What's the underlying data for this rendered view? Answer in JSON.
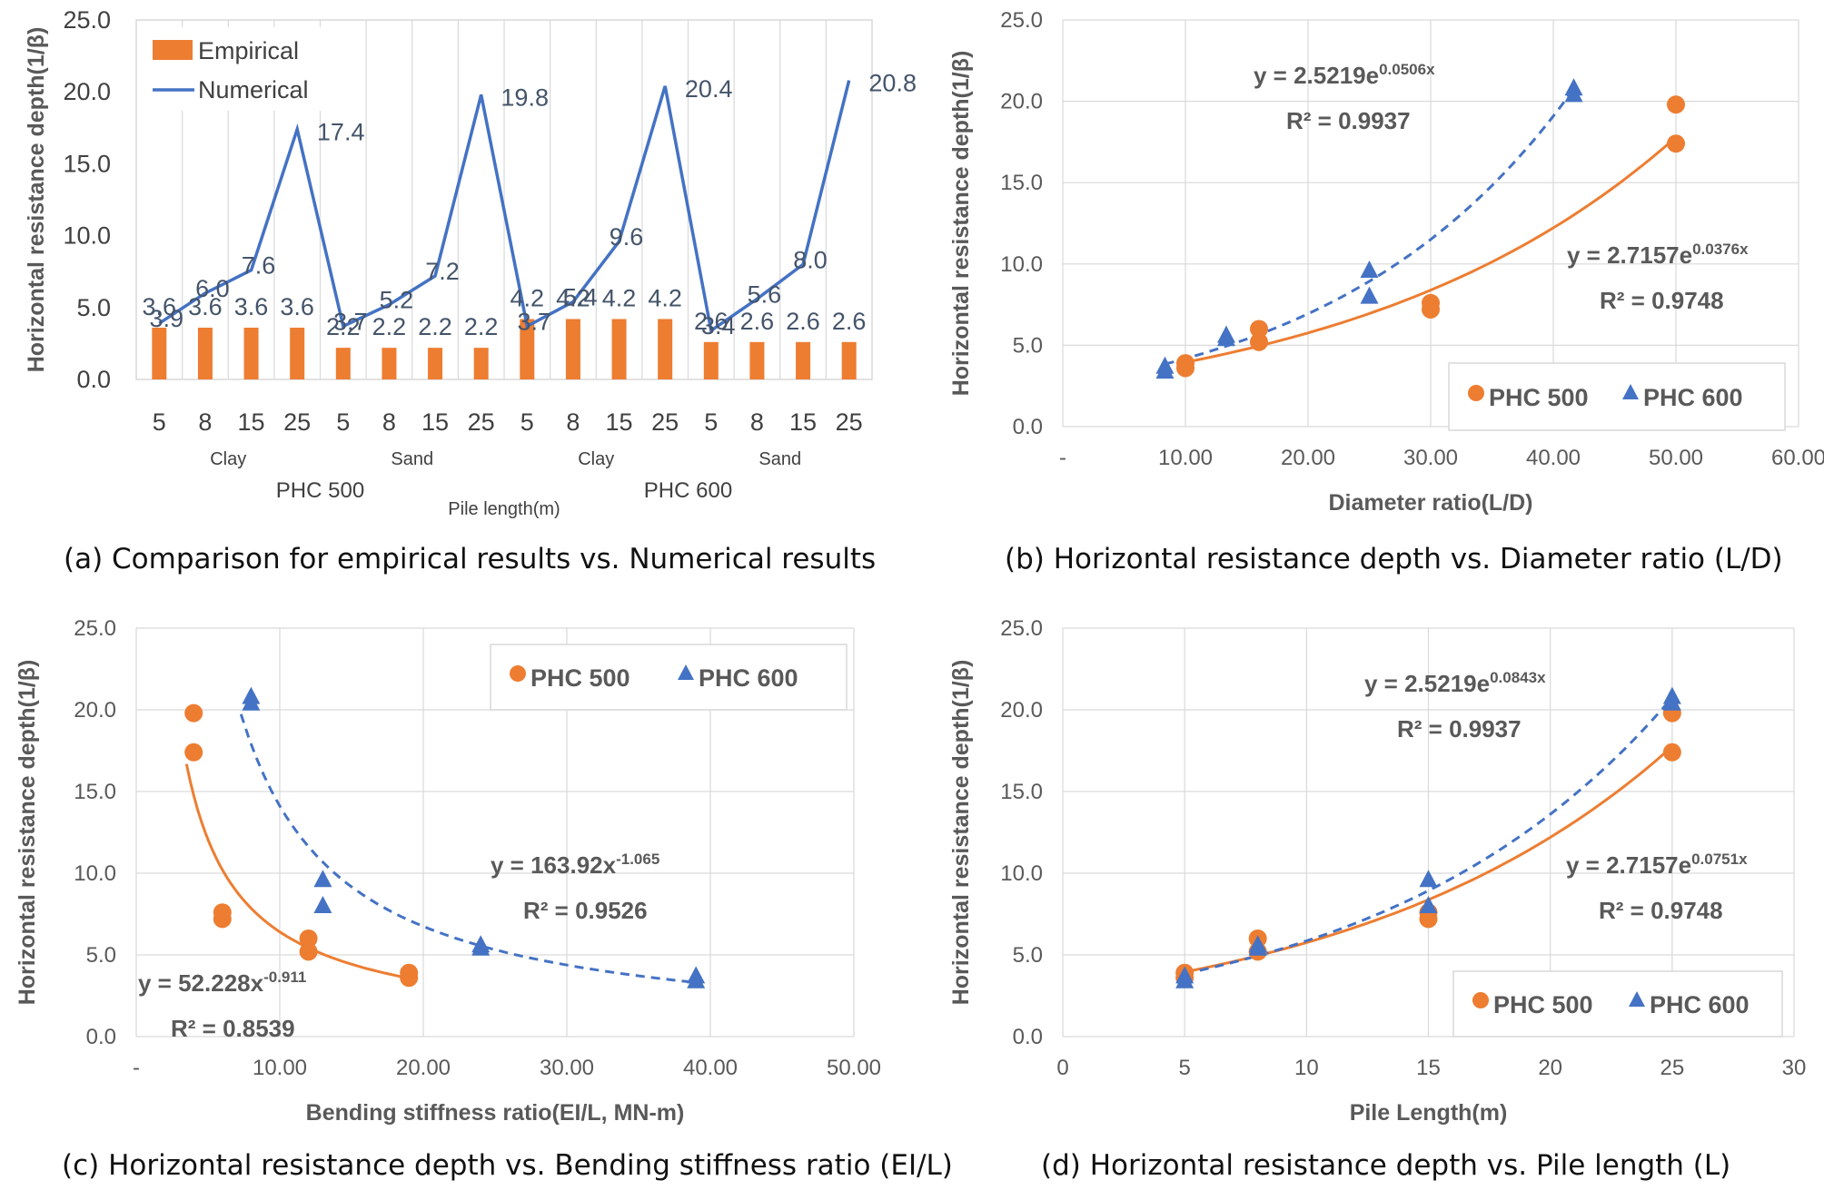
{
  "captions": {
    "a": "(a) Comparison for empirical results vs. Numerical results",
    "b": "(b) Horizontal resistance depth vs. Diameter ratio (L/D)",
    "c": "(c) Horizontal resistance depth vs. Bending stiffness ratio (EI/L)",
    "d": "(d) Horizontal resistance depth vs. Pile length (L)"
  },
  "colors": {
    "orange": "#ED7D31",
    "blue": "#4472C4",
    "grid": "#d9d9d9",
    "text": "#595959"
  },
  "chart_data": [
    {
      "id": "a",
      "type": "bar",
      "ylabel": "Horizontal resistance depth(1/β)",
      "xlabel": "Pile length(m)",
      "ylim": [
        0,
        25
      ],
      "yticks": [
        "0.0",
        "5.0",
        "10.0",
        "15.0",
        "20.0",
        "25.0"
      ],
      "categories": [
        "5",
        "8",
        "15",
        "25",
        "5",
        "8",
        "15",
        "25",
        "5",
        "8",
        "15",
        "25",
        "5",
        "8",
        "15",
        "25"
      ],
      "soil_groups": [
        "Clay",
        "Sand",
        "Clay",
        "Sand"
      ],
      "pile_groups": [
        "PHC 500",
        "PHC 600"
      ],
      "series": [
        {
          "name": "Empirical",
          "kind": "bar",
          "values": [
            3.6,
            3.6,
            3.6,
            3.6,
            2.2,
            2.2,
            2.2,
            2.2,
            4.2,
            4.2,
            4.2,
            4.2,
            2.6,
            2.6,
            2.6,
            2.6
          ]
        },
        {
          "name": "Numerical",
          "kind": "line",
          "values": [
            3.9,
            6.0,
            7.6,
            17.4,
            3.7,
            5.2,
            7.2,
            19.8,
            3.7,
            5.4,
            9.6,
            20.4,
            3.4,
            5.6,
            8.0,
            20.8
          ]
        }
      ],
      "legend": "top-left",
      "grid": "vertical"
    },
    {
      "id": "b",
      "type": "scatter",
      "ylabel": "Horizontal resistance depth(1/β)",
      "xlabel": "Diameter ratio(L/D)",
      "xlim": [
        0,
        60
      ],
      "ylim": [
        0,
        25
      ],
      "xticks": [
        "-",
        "10.00",
        "20.00",
        "30.00",
        "40.00",
        "50.00",
        "60.00"
      ],
      "yticks": [
        "0.0",
        "5.0",
        "10.0",
        "15.0",
        "20.0",
        "25.0"
      ],
      "series": [
        {
          "name": "PHC 500",
          "marker": "circle",
          "x": [
            10,
            10,
            16,
            16,
            30,
            30,
            50,
            50
          ],
          "y": [
            3.6,
            3.9,
            5.2,
            6.0,
            7.2,
            7.6,
            17.4,
            19.8
          ],
          "trend": {
            "kind": "exp",
            "a": 2.7157,
            "b": 0.0376,
            "from": 10,
            "to": 50,
            "style": "solid"
          }
        },
        {
          "name": "PHC 600",
          "marker": "triangle",
          "x": [
            8.33,
            8.33,
            13.33,
            13.33,
            25,
            25,
            41.67,
            41.67
          ],
          "y": [
            3.4,
            3.7,
            5.4,
            5.6,
            8.0,
            9.6,
            20.4,
            20.8
          ],
          "trend": {
            "kind": "exp",
            "a": 2.5219,
            "b": 0.0506,
            "from": 8.33,
            "to": 41.67,
            "style": "dashed"
          }
        }
      ],
      "annotations": [
        {
          "eq": "y = 2.5219e",
          "exp": "0.0506x",
          "r2": "R² = 0.9937"
        },
        {
          "eq": "y = 2.7157e",
          "exp": "0.0376x",
          "r2": "R² = 0.9748"
        }
      ],
      "legend": "bottom-right",
      "grid": "major"
    },
    {
      "id": "c",
      "type": "scatter",
      "ylabel": "Horizontal resistance depth(1/β)",
      "xlabel": "Bending stiffness ratio(EI/L, MN-m)",
      "xlim": [
        0,
        50
      ],
      "ylim": [
        0,
        25
      ],
      "xticks": [
        "-",
        "10.00",
        "20.00",
        "30.00",
        "40.00",
        "50.00"
      ],
      "yticks": [
        "0.0",
        "5.0",
        "10.0",
        "15.0",
        "20.0",
        "25.0"
      ],
      "series": [
        {
          "name": "PHC 500",
          "marker": "circle",
          "x": [
            4,
            4,
            6,
            6,
            12,
            12,
            19,
            19
          ],
          "y": [
            17.4,
            19.8,
            7.2,
            7.6,
            5.2,
            6.0,
            3.6,
            3.9
          ],
          "trend": {
            "kind": "power",
            "a": 52.228,
            "b": -0.911,
            "from": 3.5,
            "to": 19,
            "style": "solid"
          }
        },
        {
          "name": "PHC 600",
          "marker": "triangle",
          "x": [
            8,
            8,
            13,
            13,
            24,
            24,
            39,
            39
          ],
          "y": [
            20.4,
            20.8,
            8.0,
            9.6,
            5.4,
            5.6,
            3.4,
            3.7
          ],
          "trend": {
            "kind": "power",
            "a": 163.92,
            "b": -1.065,
            "from": 7.3,
            "to": 39,
            "style": "dashed"
          }
        }
      ],
      "annotations": [
        {
          "eq": "y = 163.92x",
          "exp": "-1.065",
          "r2": "R² = 0.9526"
        },
        {
          "eq": "y = 52.228x",
          "exp": "-0.911",
          "r2": "R² = 0.8539"
        }
      ],
      "legend": "top-right",
      "grid": "major"
    },
    {
      "id": "d",
      "type": "scatter",
      "ylabel": "Horizontal resistance depth(1/β)",
      "xlabel": "Pile Length(m)",
      "xlim": [
        0,
        30
      ],
      "ylim": [
        0,
        25
      ],
      "xticks": [
        "0",
        "5",
        "10",
        "15",
        "20",
        "25",
        "30"
      ],
      "yticks": [
        "0.0",
        "5.0",
        "10.0",
        "15.0",
        "20.0",
        "25.0"
      ],
      "series": [
        {
          "name": "PHC 500",
          "marker": "circle",
          "x": [
            5,
            5,
            8,
            8,
            15,
            15,
            25,
            25
          ],
          "y": [
            3.6,
            3.9,
            5.2,
            6.0,
            7.2,
            7.6,
            17.4,
            19.8
          ],
          "trend": {
            "kind": "exp",
            "a": 2.7157,
            "b": 0.0751,
            "from": 5,
            "to": 25,
            "style": "solid"
          }
        },
        {
          "name": "PHC 600",
          "marker": "triangle",
          "x": [
            5,
            5,
            8,
            8,
            15,
            15,
            25,
            25
          ],
          "y": [
            3.4,
            3.7,
            5.4,
            5.6,
            8.0,
            9.6,
            20.4,
            20.8
          ],
          "trend": {
            "kind": "exp",
            "a": 2.5219,
            "b": 0.0843,
            "from": 5,
            "to": 25,
            "style": "dashed"
          }
        }
      ],
      "annotations": [
        {
          "eq": "y = 2.5219e",
          "exp": "0.0843x",
          "r2": "R² = 0.9937"
        },
        {
          "eq": "y = 2.7157e",
          "exp": "0.0751x",
          "r2": "R² = 0.9748"
        }
      ],
      "legend": "bottom-right",
      "grid": "major"
    }
  ]
}
